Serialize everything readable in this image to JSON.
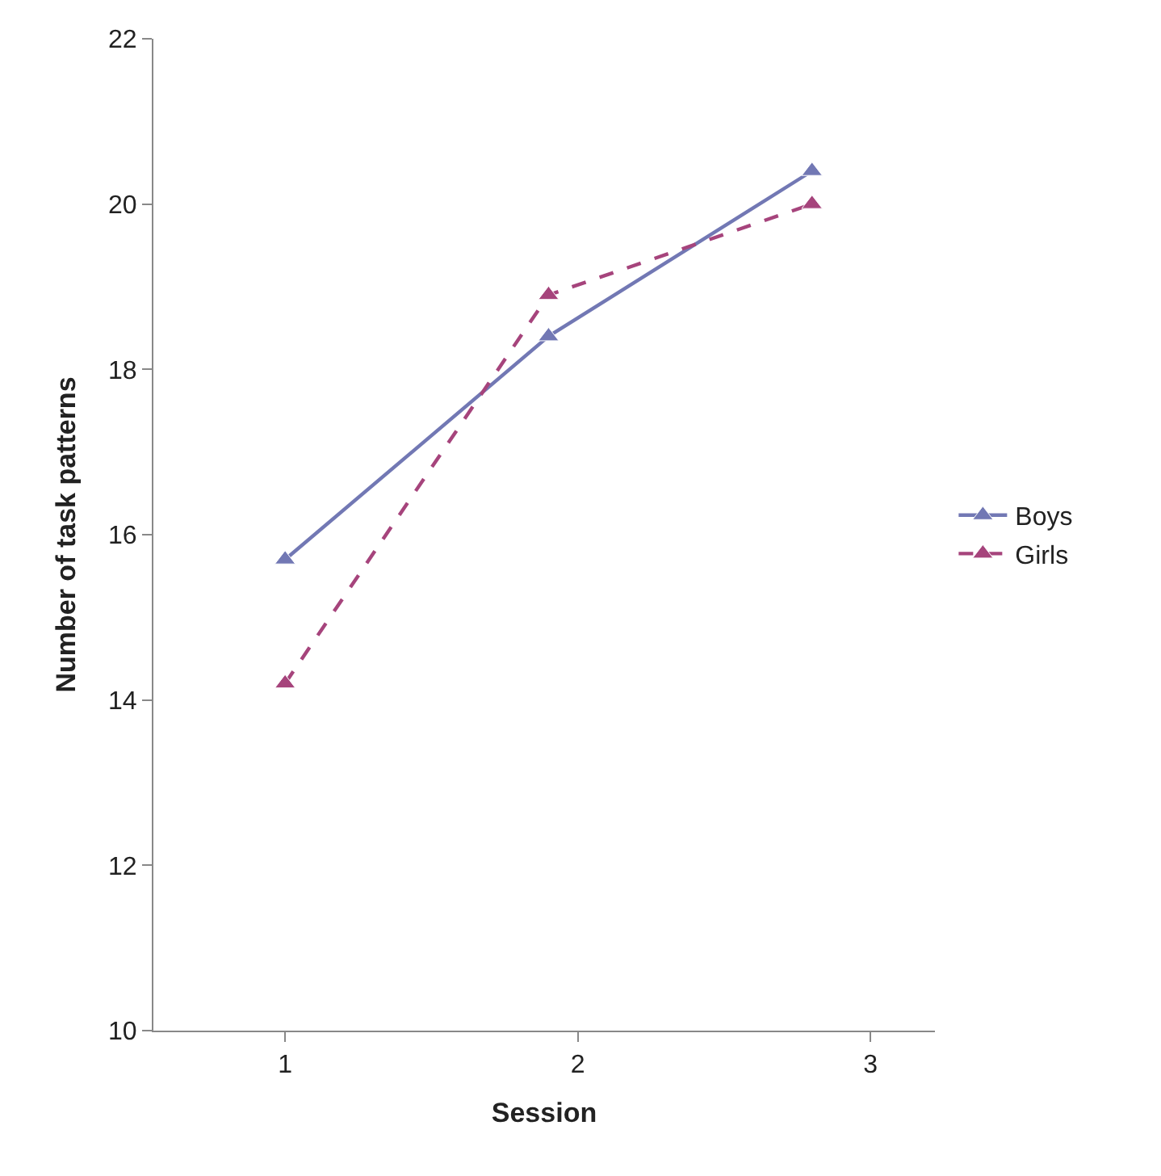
{
  "chart_data": {
    "type": "line",
    "xlabel": "Session",
    "ylabel": "Number of task patterns",
    "x": [
      1,
      1.9,
      2.8
    ],
    "series": [
      {
        "name": "Boys",
        "color": "#7278b4",
        "values": [
          15.7,
          18.4,
          20.4
        ],
        "line_style": "solid"
      },
      {
        "name": "Girls",
        "color": "#a6447c",
        "values": [
          14.2,
          18.9,
          20.0
        ],
        "line_style": "dashed"
      }
    ],
    "xlim": [
      0.55,
      3.22
    ],
    "xticks": [
      1,
      2,
      3
    ],
    "ylim": [
      10,
      22
    ],
    "yticks": [
      10,
      12,
      14,
      16,
      18,
      20,
      22
    ],
    "marker": "triangle",
    "legend": "right"
  }
}
